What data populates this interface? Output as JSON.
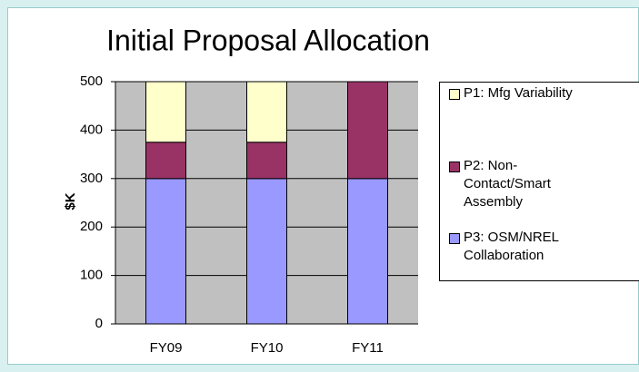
{
  "chart_data": {
    "type": "stacked_bar",
    "title": "Initial Proposal Allocation",
    "y_label": "$K",
    "categories": [
      "FY09",
      "FY10",
      "FY11"
    ],
    "series": [
      {
        "name": "P3: OSM/NREL Collaboration",
        "color": "#9999ff",
        "values": [
          300,
          300,
          300
        ]
      },
      {
        "name": "P2: Non-Contact/Smart Assembly",
        "color": "#993366",
        "values": [
          75,
          75,
          200
        ]
      },
      {
        "name": "P1: Mfg Variability",
        "color": "#ffffcc",
        "values": [
          125,
          125,
          0
        ]
      }
    ],
    "ylim": [
      0,
      500
    ],
    "yticks": [
      0,
      100,
      200,
      300,
      400,
      500
    ],
    "grid": true,
    "legend": "right",
    "plot_background": "#c0c0c0"
  }
}
